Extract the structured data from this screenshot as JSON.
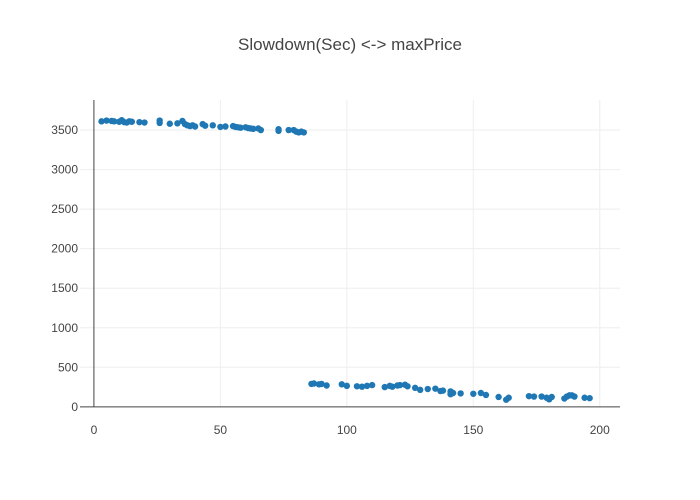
{
  "chart_data": {
    "type": "scatter",
    "title": "Slowdown(Sec) <-> maxPrice",
    "xlabel": "",
    "ylabel": "",
    "xlim": [
      -5.5,
      208
    ],
    "ylim": [
      -2,
      3880
    ],
    "x_ticks": [
      0,
      50,
      100,
      150,
      200
    ],
    "y_ticks": [
      0,
      500,
      1000,
      1500,
      2000,
      2500,
      3000,
      3500
    ],
    "grid": true,
    "legend": "none",
    "marker_color": "#1f77b4",
    "series": [
      {
        "x": [
          3,
          5,
          7,
          8,
          10,
          11,
          12,
          13,
          14,
          15,
          18,
          20,
          26,
          26,
          30,
          33,
          35,
          36,
          37,
          38,
          39,
          40,
          43,
          44,
          47,
          50,
          52,
          55,
          56,
          57,
          58,
          60,
          61,
          62,
          63,
          65,
          66,
          73,
          73,
          77,
          79,
          80,
          81,
          82,
          83,
          86,
          87,
          89,
          90,
          92,
          98,
          100,
          104,
          106,
          108,
          110,
          115,
          117,
          118,
          120,
          121,
          123,
          124,
          127,
          129,
          132,
          135,
          137,
          138,
          141,
          141,
          142,
          145,
          150,
          153,
          155,
          160,
          163,
          164,
          172,
          174,
          177,
          179,
          180,
          181,
          186,
          187,
          188,
          189,
          190,
          194,
          196
        ],
        "y": [
          3610,
          3620,
          3615,
          3610,
          3605,
          3625,
          3600,
          3595,
          3610,
          3605,
          3600,
          3595,
          3620,
          3590,
          3580,
          3585,
          3615,
          3575,
          3560,
          3550,
          3560,
          3545,
          3575,
          3555,
          3560,
          3540,
          3545,
          3550,
          3540,
          3535,
          3530,
          3535,
          3525,
          3520,
          3515,
          3520,
          3500,
          3510,
          3490,
          3500,
          3500,
          3480,
          3470,
          3480,
          3470,
          290,
          295,
          285,
          290,
          270,
          285,
          265,
          260,
          255,
          265,
          275,
          250,
          265,
          255,
          270,
          275,
          280,
          260,
          240,
          215,
          225,
          230,
          200,
          205,
          195,
          160,
          175,
          170,
          165,
          175,
          150,
          125,
          90,
          115,
          135,
          130,
          130,
          115,
          95,
          125,
          105,
          130,
          145,
          145,
          130,
          115,
          110
        ]
      }
    ]
  }
}
